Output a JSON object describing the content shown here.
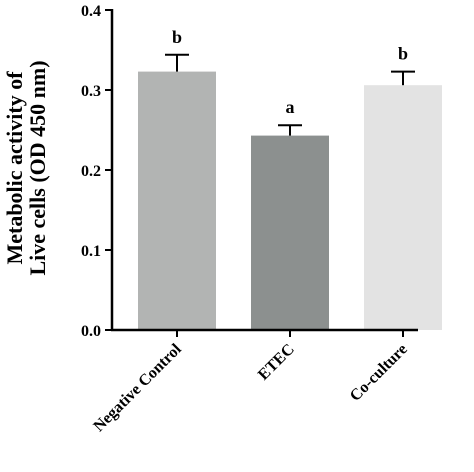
{
  "chart_data": {
    "type": "bar",
    "categories": [
      "Negative Control",
      "ETEC",
      "Co-culture"
    ],
    "values": [
      0.323,
      0.243,
      0.306
    ],
    "errors": [
      0.021,
      0.013,
      0.017
    ],
    "significance": [
      "b",
      "a",
      "b"
    ],
    "bar_colors": [
      "#b2b4b3",
      "#8c908f",
      "#e3e3e3"
    ],
    "title": "",
    "xlabel": "",
    "ylabel": [
      "Metabolic activity of",
      "Live cells (OD 450 nm)"
    ],
    "ylim": [
      0,
      0.4
    ],
    "yticks": [
      0.0,
      0.1,
      0.2,
      0.3,
      0.4
    ],
    "ytick_labels": [
      "0.0",
      "0.1",
      "0.2",
      "0.3",
      "0.4"
    ],
    "grid": false,
    "legend": "none"
  }
}
